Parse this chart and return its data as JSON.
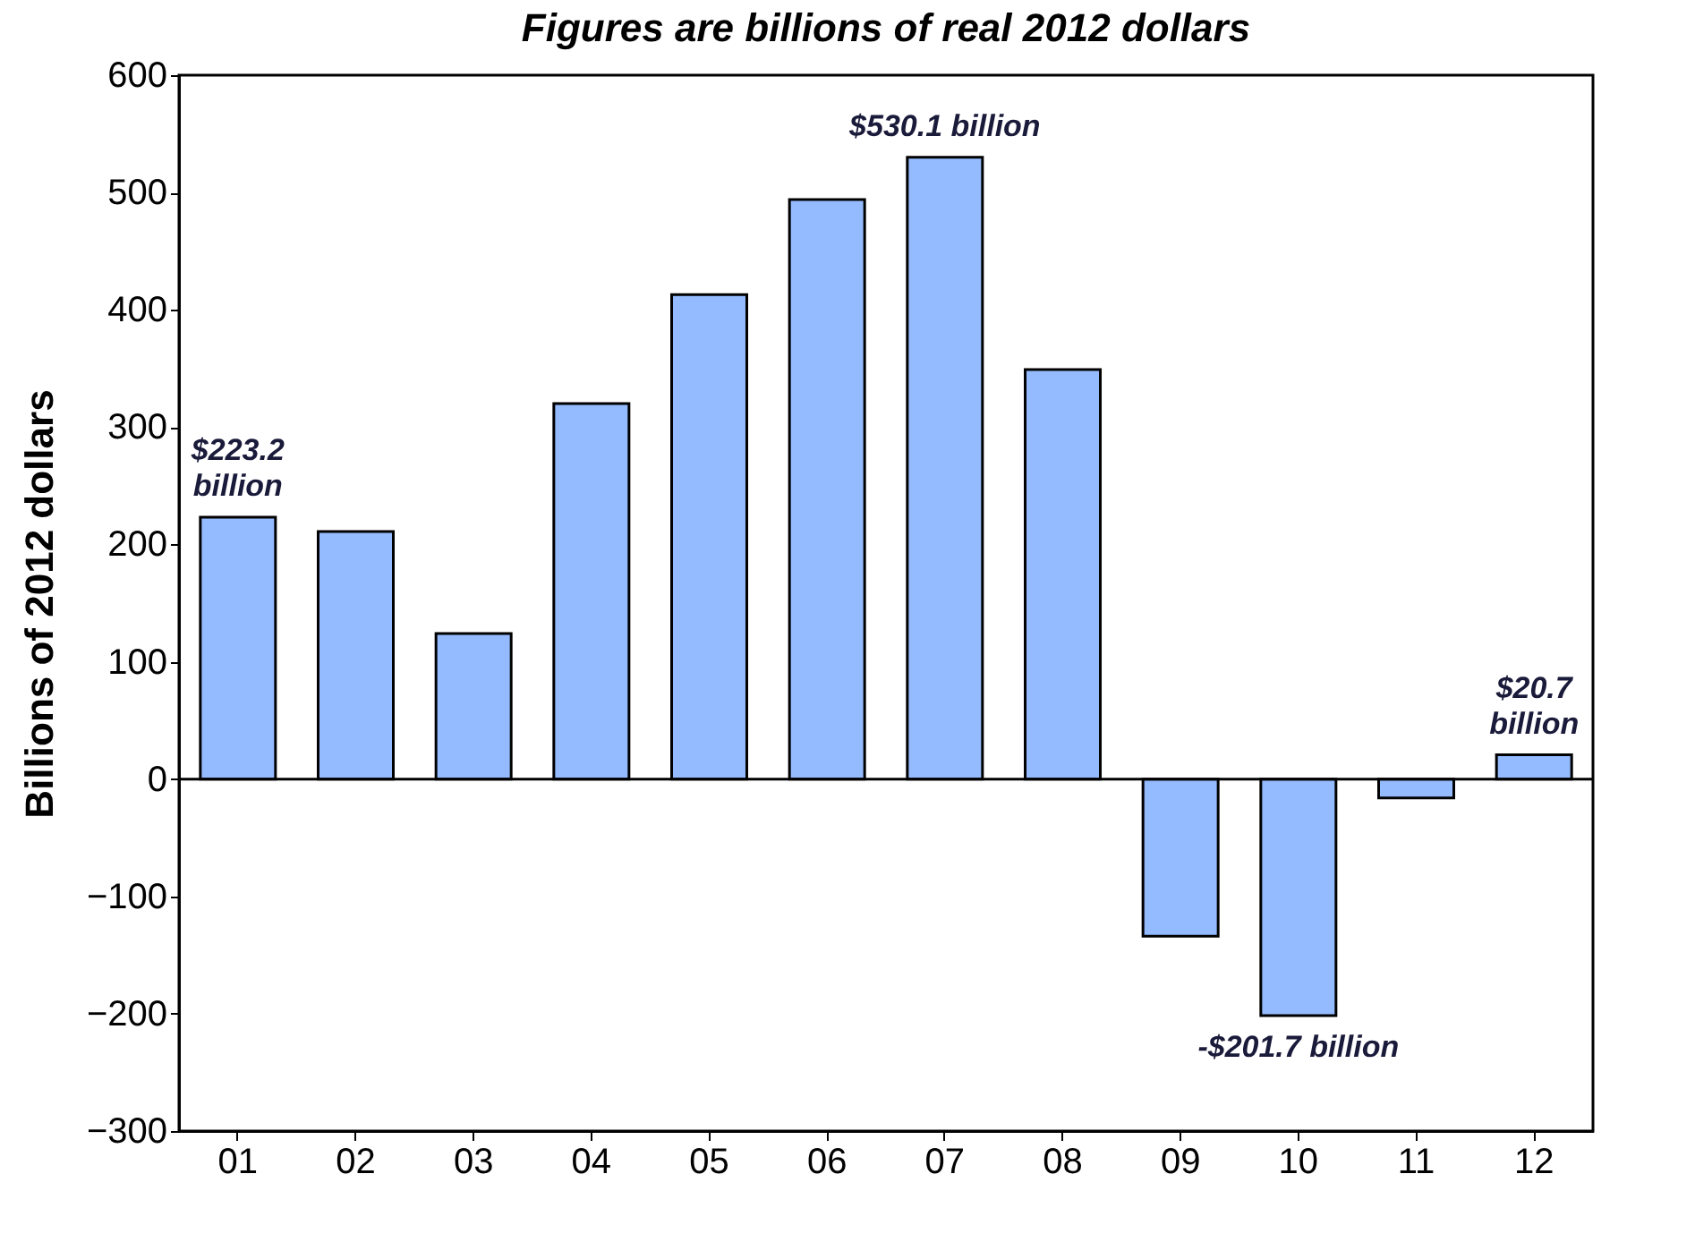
{
  "chart_data": {
    "type": "bar",
    "title": "Figures are billions of real 2012 dollars",
    "ylabel": "Billions of 2012 dollars",
    "categories": [
      "01",
      "02",
      "03",
      "04",
      "05",
      "06",
      "07",
      "08",
      "09",
      "10",
      "11",
      "12"
    ],
    "values": [
      223.2,
      211,
      124,
      320,
      413,
      494,
      530.1,
      349,
      -134,
      -201.7,
      -16,
      20.7
    ],
    "value_labels": [
      "$223.2 billion",
      null,
      null,
      null,
      null,
      null,
      "$530.1 billion",
      null,
      null,
      "-$201.7 billion",
      null,
      "$20.7 billion"
    ],
    "color": "#94bbff",
    "ylim": [
      -300,
      600
    ],
    "yticks": [
      -300,
      -200,
      -100,
      0,
      100,
      200,
      300,
      400,
      500,
      600
    ],
    "ref_lines": [
      {
        "axis": "y",
        "value": 0,
        "color": "#000000"
      }
    ],
    "grid": false
  }
}
